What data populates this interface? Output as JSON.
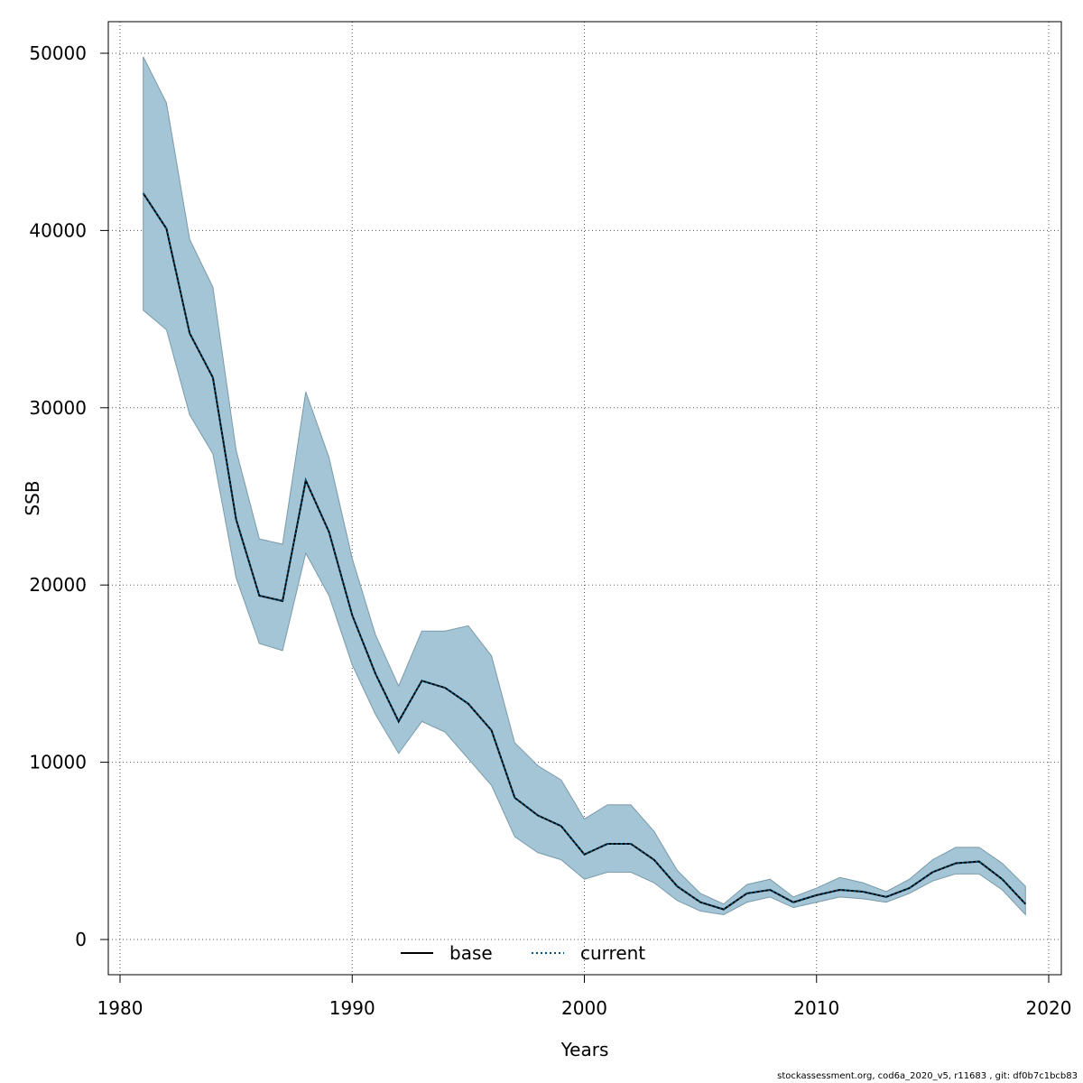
{
  "chart_data": {
    "type": "area",
    "xlabel": "Years",
    "ylabel": "SSB",
    "xlim": [
      1980,
      2020
    ],
    "ylim": [
      0,
      50000
    ],
    "xticks": [
      1980,
      1990,
      2000,
      2010,
      2020
    ],
    "yticks": [
      0,
      10000,
      20000,
      30000,
      40000,
      50000
    ],
    "grid": true,
    "legend_position": "bottom-center",
    "colors": {
      "band": "#a4c5d6",
      "band_edge": "#7a9aa8",
      "base": "#000000",
      "current": "#00527a",
      "grid": "#555555"
    },
    "x": [
      1981,
      1982,
      1983,
      1984,
      1985,
      1986,
      1987,
      1988,
      1989,
      1990,
      1991,
      1992,
      1993,
      1994,
      1995,
      1996,
      1997,
      1998,
      1999,
      2000,
      2001,
      2002,
      2003,
      2004,
      2005,
      2006,
      2007,
      2008,
      2009,
      2010,
      2011,
      2012,
      2013,
      2014,
      2015,
      2016,
      2017,
      2018,
      2019
    ],
    "upper": [
      49800,
      47200,
      39500,
      36800,
      27600,
      22600,
      22300,
      30900,
      27200,
      21500,
      17200,
      14300,
      17400,
      17400,
      17700,
      16000,
      11100,
      9800,
      9000,
      6800,
      7600,
      7600,
      6100,
      3900,
      2600,
      2000,
      3100,
      3400,
      2400,
      2900,
      3500,
      3200,
      2700,
      3400,
      4500,
      5200,
      5200,
      4300,
      3000
    ],
    "lower": [
      35500,
      34400,
      29600,
      27400,
      20400,
      16700,
      16300,
      21800,
      19400,
      15500,
      12700,
      10500,
      12300,
      11700,
      10200,
      8700,
      5800,
      4900,
      4500,
      3400,
      3800,
      3800,
      3200,
      2200,
      1600,
      1400,
      2100,
      2400,
      1800,
      2100,
      2400,
      2300,
      2100,
      2600,
      3300,
      3700,
      3700,
      2800,
      1400
    ],
    "series": [
      {
        "name": "base",
        "line": "solid",
        "values": [
          42100,
          40100,
          34200,
          31700,
          23700,
          19400,
          19100,
          25900,
          23000,
          18300,
          15000,
          12300,
          14600,
          14200,
          13300,
          11800,
          8000,
          7000,
          6400,
          4800,
          5400,
          5400,
          4500,
          3000,
          2100,
          1700,
          2600,
          2800,
          2100,
          2500,
          2800,
          2700,
          2400,
          2900,
          3800,
          4300,
          4400,
          3400,
          2000
        ]
      },
      {
        "name": "current",
        "line": "dotted",
        "values": [
          42100,
          40100,
          34200,
          31700,
          23700,
          19400,
          19100,
          25900,
          23000,
          18300,
          15000,
          12300,
          14600,
          14200,
          13300,
          11800,
          8000,
          7000,
          6400,
          4800,
          5400,
          5400,
          4500,
          3000,
          2100,
          1700,
          2600,
          2800,
          2100,
          2500,
          2800,
          2700,
          2400,
          2900,
          3800,
          4300,
          4400,
          3400,
          2000
        ]
      }
    ]
  },
  "footer": "stockassessment.org, cod6a_2020_v5, r11683 , git: df0b7c1bcb83"
}
